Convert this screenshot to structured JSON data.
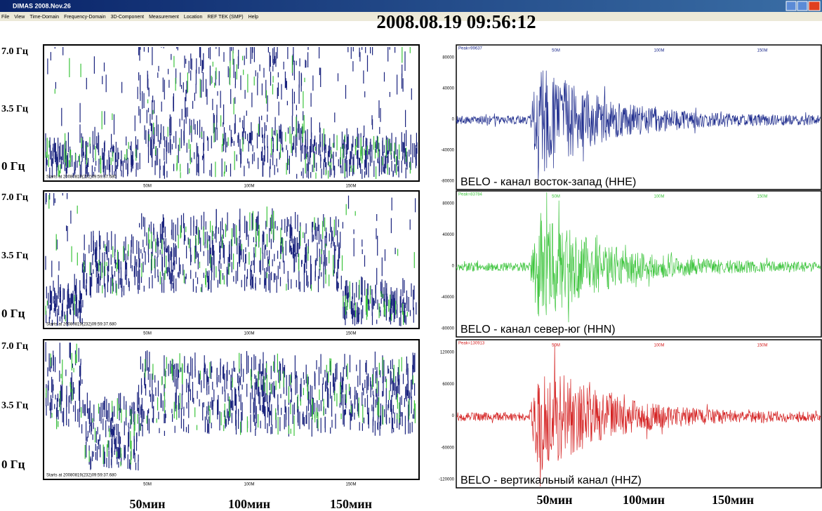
{
  "window": {
    "title": "DIMAS 2008.Nov.26"
  },
  "menu": [
    "File",
    "View",
    "Time-Domain",
    "Frequency-Domain",
    "3D-Component",
    "Measurement",
    "Location",
    "REF TEK (SMP)",
    "Help"
  ],
  "timestamp": "2008.08.19 09:56:12",
  "spectrograms": [
    {
      "freq_labels": [
        "7.0 Гц",
        "3.5 Гц",
        "0 Гц"
      ],
      "time_labels": [
        "50M",
        "100M",
        "150M"
      ],
      "start": "Starts at 20080819(232)09:59:37.680"
    },
    {
      "freq_labels": [
        "7.0 Гц",
        "3.5 Гц",
        "0 Гц"
      ],
      "time_labels": [
        "50M",
        "100M",
        "150M"
      ],
      "start": "Starts at 20080819(232)09:59:37.680"
    },
    {
      "freq_labels": [
        "7.0 Гц",
        "3.5 Гц",
        "0 Гц"
      ],
      "time_labels": [
        "50M",
        "100M",
        "150M"
      ],
      "start": "Starts at 20080819(232)09:59:37.680"
    }
  ],
  "spectrogram_axis": [
    "50мин",
    "100мин",
    "150мин"
  ],
  "seismograms": [
    {
      "peak": "Peak=99637",
      "yticks": [
        80000,
        40000,
        0,
        -40000,
        -80000
      ],
      "time_labels": [
        "50M",
        "100M",
        "150M"
      ],
      "caption": "BELO - канал восток-запад (HHE)",
      "color": "#1c2a8c"
    },
    {
      "peak": "Peak=83784",
      "yticks": [
        80000,
        40000,
        0,
        -40000,
        -80000
      ],
      "time_labels": [
        "50M",
        "100M",
        "150M"
      ],
      "caption": "BELO - канал север-юг (HHN)",
      "color": "#3cc43c"
    },
    {
      "peak": "Peak=130913",
      "yticks": [
        120000,
        60000,
        0,
        -60000,
        -120000
      ],
      "time_labels": [
        "50M",
        "100M",
        "150M"
      ],
      "caption": "BELO - вертикальный канал (HHZ)",
      "color": "#d42020"
    }
  ],
  "seismogram_axis": [
    "50мин",
    "100мин",
    "150мин"
  ]
}
